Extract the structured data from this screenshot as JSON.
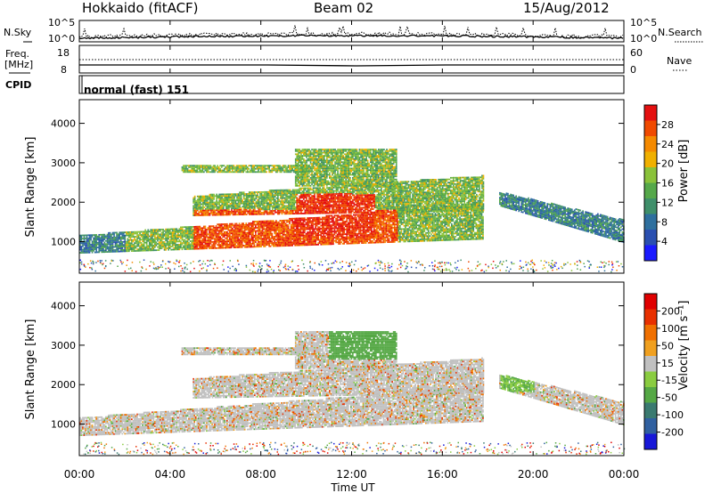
{
  "header": {
    "station": "Hokkaido (fitACF)",
    "beam": "Beam 02",
    "date": "15/Aug/2012"
  },
  "noise_panel": {
    "left_label": "N.Sky",
    "right_label": "N.Search",
    "left_ticks": [
      "10^5",
      "10^0"
    ],
    "right_ticks": [
      "10^5",
      "10^0"
    ]
  },
  "freq_panel": {
    "left_label": "Freq.",
    "left_unit": "[MHz]",
    "right_label": "Nave",
    "left_ticks": [
      "18",
      "8"
    ],
    "right_ticks": [
      "60",
      "0"
    ]
  },
  "cpid_panel": {
    "label": "CPID",
    "value": "normal (fast) 151"
  },
  "colors": {
    "power": [
      "#1a1aff",
      "#2a4fb0",
      "#2e6f9e",
      "#3f8f6a",
      "#55a84a",
      "#8ac23a",
      "#f0b000",
      "#f58a00",
      "#f04a00",
      "#e41010"
    ],
    "velocity": [
      "#1818d8",
      "#3060a0",
      "#3a7a70",
      "#55a845",
      "#8acc40",
      "#c0c0c0",
      "#f0a020",
      "#f07000",
      "#e83000",
      "#e00000"
    ]
  },
  "chart_data": [
    {
      "type": "heatmap",
      "quantity": "power",
      "ylabel": "Slant Range [km]",
      "xlabel": "Time UT",
      "yticks": [
        "1000",
        "2000",
        "3000",
        "4000"
      ],
      "ylim": [
        200,
        4600
      ],
      "colorbar_label": "Power [dB]",
      "colorbar_ticks": [
        "4",
        "8",
        "12",
        "16",
        "20",
        "24",
        "28"
      ],
      "colorbar_range": [
        0,
        32
      ]
    },
    {
      "type": "heatmap",
      "quantity": "velocity",
      "ylabel": "Slant Range [km]",
      "xlabel": "Time UT",
      "yticks": [
        "1000",
        "2000",
        "3000",
        "4000"
      ],
      "ylim": [
        200,
        4600
      ],
      "colorbar_label": "Velocity [m s⁻¹]",
      "colorbar_ticks": [
        "200",
        "100",
        "50",
        "15",
        "-15",
        "-50",
        "-100",
        "-200"
      ]
    }
  ],
  "x_axis": {
    "ticks": [
      "00:00",
      "04:00",
      "08:00",
      "12:00",
      "16:00",
      "20:00",
      "00:00"
    ],
    "label": "Time UT"
  }
}
